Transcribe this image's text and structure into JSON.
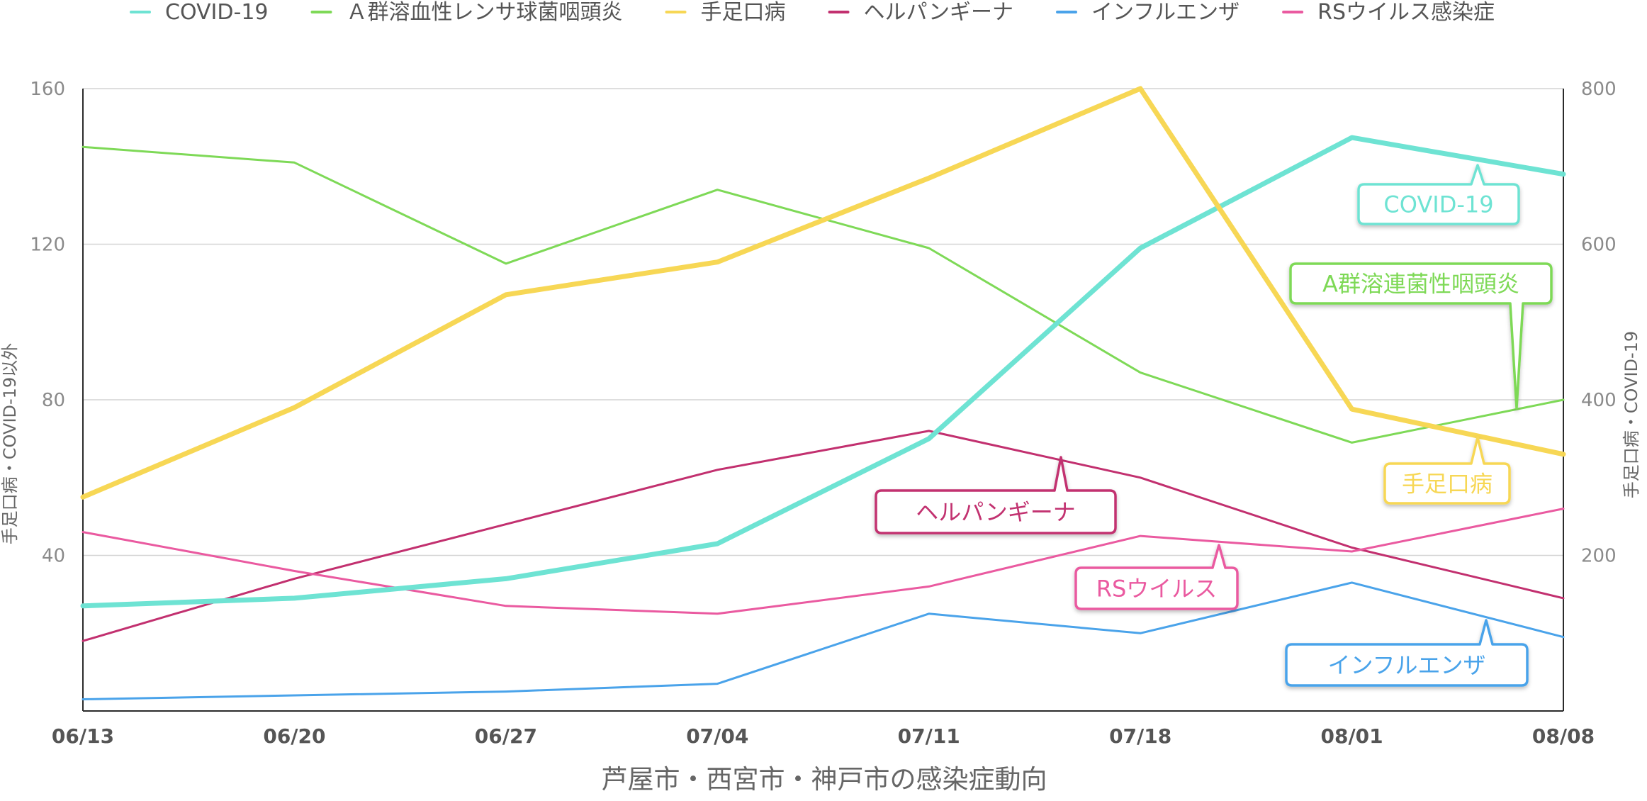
{
  "chart_data": {
    "type": "line",
    "xlabel": "芦屋市・西宮市・神戸市の感染症動向",
    "ylabel_left": "手足口病・COVID-19以外",
    "ylabel_right": "手足口病・COVID-19",
    "ylim_left": [
      0,
      160
    ],
    "ylim_right": [
      0,
      800
    ],
    "yticks_left": [
      "40",
      "80",
      "120",
      "160"
    ],
    "yticks_right": [
      "200",
      "400",
      "600",
      "800"
    ],
    "grid": true,
    "legend_position": "top",
    "categories": [
      "06/13",
      "06/20",
      "06/27",
      "07/04",
      "07/11",
      "07/18",
      "08/01",
      "08/08"
    ],
    "series": [
      {
        "name": "COVID-19",
        "axis": "right",
        "color": "#6ee3d3",
        "width": "thick",
        "values": [
          135,
          145,
          170,
          215,
          350,
          595,
          737,
          690
        ],
        "callout": "COVID-19"
      },
      {
        "name": "Ａ群溶血性レンサ球菌咽頭炎",
        "axis": "left",
        "color": "#7ed957",
        "width": "thin",
        "values": [
          145,
          141,
          115,
          134,
          119,
          87,
          69,
          80
        ],
        "callout": "A群溶連菌性咽頭炎"
      },
      {
        "name": "手足口病",
        "axis": "right",
        "color": "#f7d755",
        "width": "thick",
        "values": [
          275,
          390,
          535,
          577,
          685,
          800,
          388,
          330
        ],
        "callout": "手足口病"
      },
      {
        "name": "ヘルパンギーナ",
        "axis": "left",
        "color": "#c2306f",
        "width": "thin",
        "values": [
          18,
          34,
          48,
          62,
          72,
          60,
          42,
          29
        ],
        "callout": "ヘルパンギーナ"
      },
      {
        "name": "インフルエンザ",
        "axis": "left",
        "color": "#4aa3ea",
        "width": "thin",
        "values": [
          3,
          4,
          5,
          7,
          25,
          20,
          33,
          19
        ],
        "callout": "インフルエンザ"
      },
      {
        "name": "RSウイルス感染症",
        "axis": "left",
        "color": "#ea5aa0",
        "width": "thin",
        "values": [
          46,
          36,
          27,
          25,
          32,
          45,
          41,
          52
        ],
        "callout": "RSウイルス"
      }
    ]
  }
}
